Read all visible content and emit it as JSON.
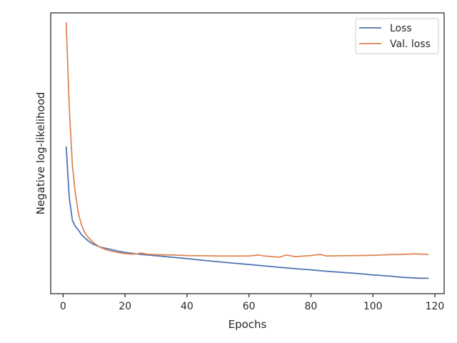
{
  "chart_data": {
    "type": "line",
    "title": "",
    "xlabel": "Epochs",
    "ylabel": "Negative log-likelihood",
    "xlim": [
      -4,
      123
    ],
    "ylim": [
      0.0,
      1.0
    ],
    "x_ticks": [
      0,
      20,
      40,
      60,
      80,
      100,
      120
    ],
    "y_ticks_shown": false,
    "grid": false,
    "legend_position": "top-right",
    "series": [
      {
        "name": "Loss",
        "color": "#4c72b0",
        "x": [
          1,
          2,
          3,
          4,
          5,
          6,
          7,
          8,
          9,
          10,
          12,
          14,
          16,
          18,
          20,
          25,
          30,
          35,
          40,
          45,
          50,
          55,
          60,
          65,
          70,
          75,
          80,
          85,
          90,
          95,
          100,
          105,
          110,
          115,
          118
        ],
        "values": [
          0.524,
          0.342,
          0.261,
          0.239,
          0.226,
          0.209,
          0.199,
          0.189,
          0.181,
          0.175,
          0.166,
          0.161,
          0.156,
          0.151,
          0.147,
          0.14,
          0.135,
          0.13,
          0.125,
          0.119,
          0.114,
          0.109,
          0.104,
          0.099,
          0.094,
          0.089,
          0.085,
          0.08,
          0.076,
          0.072,
          0.067,
          0.063,
          0.058,
          0.055,
          0.055
        ]
      },
      {
        "name": "Val. loss",
        "color": "#dd8452",
        "x": [
          1,
          2,
          3,
          4,
          5,
          6,
          7,
          8,
          9,
          10,
          12,
          14,
          16,
          18,
          20,
          22,
          24,
          25,
          27,
          30,
          35,
          40,
          45,
          50,
          55,
          60,
          63,
          65,
          70,
          72,
          75,
          80,
          83,
          85,
          90,
          95,
          100,
          105,
          110,
          113,
          116,
          118
        ],
        "values": [
          0.966,
          0.662,
          0.457,
          0.353,
          0.284,
          0.243,
          0.217,
          0.202,
          0.19,
          0.18,
          0.165,
          0.156,
          0.151,
          0.146,
          0.143,
          0.141,
          0.142,
          0.145,
          0.141,
          0.139,
          0.138,
          0.136,
          0.135,
          0.134,
          0.134,
          0.134,
          0.138,
          0.134,
          0.13,
          0.138,
          0.132,
          0.136,
          0.14,
          0.134,
          0.135,
          0.136,
          0.137,
          0.139,
          0.14,
          0.142,
          0.141,
          0.14
        ]
      }
    ]
  }
}
